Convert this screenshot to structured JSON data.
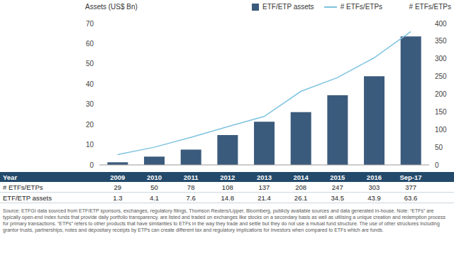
{
  "chart_data": {
    "type": "bar",
    "y_label": "Assets (US$ Bn)",
    "y2_label": "# ETFs/ETPs",
    "x_label": "Year",
    "categories": [
      "2009",
      "2010",
      "2011",
      "2012",
      "2013",
      "2014",
      "2015",
      "2016",
      "Sep-17"
    ],
    "series": [
      {
        "name": "ETF/ETP assets",
        "type": "bar",
        "color": "#3b5b7d",
        "values": [
          1.3,
          4.1,
          7.6,
          14.8,
          21.4,
          26.1,
          34.5,
          43.9,
          63.6
        ]
      },
      {
        "name": "# ETFs/ETPs",
        "type": "line",
        "axis": "y2",
        "color": "#7fc3e0",
        "marker": "none",
        "line_style": "solid",
        "values": [
          29,
          50,
          78,
          108,
          137,
          208,
          247,
          303,
          377
        ]
      }
    ],
    "ylim": [
      0,
      70
    ],
    "yticks": [
      0,
      10,
      20,
      30,
      40,
      50,
      60,
      70
    ],
    "y2lim": [
      0,
      400
    ],
    "y2ticks": [
      0,
      50,
      100,
      150,
      200,
      250,
      300,
      350,
      400
    ],
    "grid": false,
    "legend": "top",
    "annotations": [
      "Source: ETFGI data sourced from ETF/ETP sponsors, exchanges, regulatory filings, Thomson Reuters/Lipper, Bloomberg, publicly available sources and data generated in-house. Note: “ETFs” are typically open-end index funds that provide daily portfolio transparency, are listed and traded on exchanges like stocks on a secondary basis as well as utilising a unique creation and redemption process for primary transactions. “ETPs” refers to other products that have similarities to ETFs in the way they trade and settle but they do not use a mutual fund structure. The use of other structures including grantor trusts, partnerships, notes and depositary receipts by ETPs can create different tax and regulatory implications for investors when compared to ETFs which are funds."
    ]
  }
}
